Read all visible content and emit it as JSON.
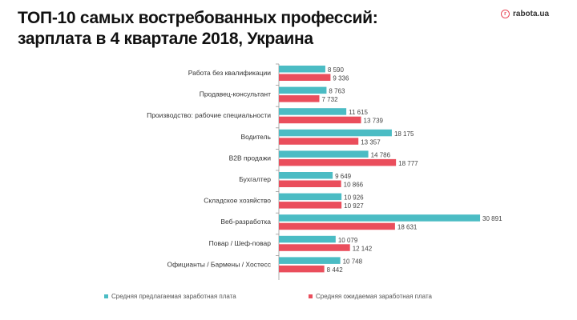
{
  "header": {
    "title_line1": "ТОП-10 самых востребованных профессий:",
    "title_line2": "зарплата в 4 квартале 2018, Украина",
    "logo": "rabota.ua"
  },
  "chart_data": {
    "type": "bar",
    "orientation": "horizontal",
    "title": "ТОП-10 самых востребованных профессий: зарплата в 4 квартале 2018, Украина",
    "categories": [
      "Работа без квалификации",
      "Продавец-консультант",
      "Производство: рабочие специальности",
      "Водитель",
      "B2B продажи",
      "Бухгалтер",
      "Складское хозяйство",
      "Веб-разработка",
      "Повар / Шеф-повар",
      "Официанты / Бармены / Хостесс"
    ],
    "series": [
      {
        "name": "Средняя предлагаемая заработная плата",
        "color": "#4bbcc4",
        "values": [
          8590,
          8763,
          11615,
          18175,
          14786,
          9649,
          10926,
          30891,
          10079,
          10748
        ],
        "labels": [
          "8 590",
          "8 763",
          "11 615",
          "18 175",
          "14 786",
          "9 649",
          "10 926",
          "30 891",
          "10 079",
          "10 748"
        ]
      },
      {
        "name": "Средняя ожидаемая заработная плата",
        "color": "#ea4e5c",
        "values": [
          9336,
          7732,
          13739,
          13357,
          18777,
          10866,
          10927,
          18631,
          12142,
          8442
        ],
        "labels": [
          "9 336",
          "7 732",
          "13 739",
          "13 357",
          "18 777",
          "10 866",
          "10 927",
          "18 631",
          "12 142",
          "8 442"
        ]
      }
    ],
    "xlim": [
      1900,
      31000
    ],
    "legend": "bottom"
  }
}
